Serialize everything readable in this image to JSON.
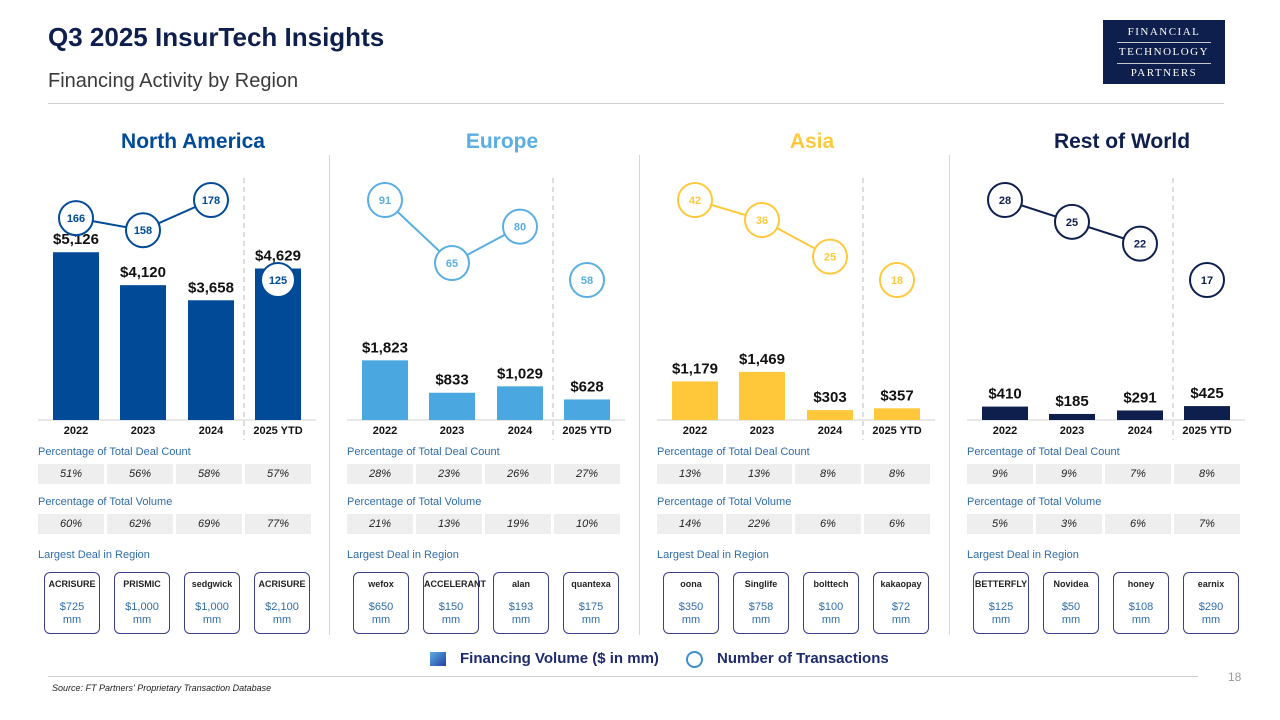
{
  "header": {
    "title": "Q3 2025 InsurTech Insights",
    "subtitle": "Financing Activity by Region",
    "logo_lines": [
      "FINANCIAL",
      "TECHNOLOGY",
      "PARTNERS"
    ]
  },
  "labels": {
    "deal_count": "Percentage of Total Deal Count",
    "volume": "Percentage of Total Volume",
    "largest": "Largest Deal in Region"
  },
  "legend": {
    "volume": "Financing Volume ($ in mm)",
    "transactions": "Number of Transactions"
  },
  "footer": {
    "source": "Source: FT Partners' Proprietary Transaction Database",
    "page": "18"
  },
  "chart_data": [
    {
      "type": "bar",
      "title": "North America",
      "color": "#004a97",
      "bar_color": "#004a97",
      "categories": [
        "2022",
        "2023",
        "2024",
        "2025 YTD"
      ],
      "series": [
        {
          "name": "Financing Volume ($ in mm)",
          "values": [
            5126,
            4120,
            3658,
            4629
          ],
          "labels": [
            "$5,126",
            "$4,120",
            "$3,658",
            "$4,629"
          ]
        },
        {
          "name": "Number of Transactions",
          "values": [
            166,
            158,
            178,
            125
          ]
        }
      ],
      "ylim": [
        0,
        5500
      ],
      "deal_count_pct": [
        "51%",
        "56%",
        "58%",
        "57%"
      ],
      "volume_pct": [
        "60%",
        "62%",
        "69%",
        "77%"
      ],
      "largest_deals": [
        {
          "company": "ACRISURE",
          "amount": "$725",
          "unit": "mm"
        },
        {
          "company": "PRISMIC",
          "amount": "$1,000",
          "unit": "mm"
        },
        {
          "company": "sedgwick",
          "amount": "$1,000",
          "unit": "mm"
        },
        {
          "company": "ACRISURE",
          "amount": "$2,100",
          "unit": "mm"
        }
      ]
    },
    {
      "type": "bar",
      "title": "Europe",
      "color": "#5aaee2",
      "bar_color": "#4aa7e0",
      "categories": [
        "2022",
        "2023",
        "2024",
        "2025 YTD"
      ],
      "series": [
        {
          "name": "Financing Volume ($ in mm)",
          "values": [
            1823,
            833,
            1029,
            628
          ],
          "labels": [
            "$1,823",
            "$833",
            "$1,029",
            "$628"
          ]
        },
        {
          "name": "Number of Transactions",
          "values": [
            91,
            65,
            80,
            58
          ]
        }
      ],
      "ylim": [
        0,
        5500
      ],
      "deal_count_pct": [
        "28%",
        "23%",
        "26%",
        "27%"
      ],
      "volume_pct": [
        "21%",
        "13%",
        "19%",
        "10%"
      ],
      "largest_deals": [
        {
          "company": "wefox",
          "amount": "$650",
          "unit": "mm"
        },
        {
          "company": "ACCELERANT",
          "amount": "$150",
          "unit": "mm"
        },
        {
          "company": "alan",
          "amount": "$193",
          "unit": "mm"
        },
        {
          "company": "quantexa",
          "amount": "$175",
          "unit": "mm"
        }
      ]
    },
    {
      "type": "bar",
      "title": "Asia",
      "color": "#ffc93c",
      "bar_color": "#ffc83a",
      "categories": [
        "2022",
        "2023",
        "2024",
        "2025 YTD"
      ],
      "series": [
        {
          "name": "Financing Volume ($ in mm)",
          "values": [
            1179,
            1469,
            303,
            357
          ],
          "labels": [
            "$1,179",
            "$1,469",
            "$303",
            "$357"
          ]
        },
        {
          "name": "Number of Transactions",
          "values": [
            42,
            36,
            25,
            18
          ]
        }
      ],
      "ylim": [
        0,
        5500
      ],
      "deal_count_pct": [
        "13%",
        "13%",
        "8%",
        "8%"
      ],
      "volume_pct": [
        "14%",
        "22%",
        "6%",
        "6%"
      ],
      "largest_deals": [
        {
          "company": "oona",
          "amount": "$350",
          "unit": "mm"
        },
        {
          "company": "Singlife",
          "amount": "$758",
          "unit": "mm"
        },
        {
          "company": "bolttech",
          "amount": "$100",
          "unit": "mm"
        },
        {
          "company": "kakaopay",
          "amount": "$72",
          "unit": "mm"
        }
      ]
    },
    {
      "type": "bar",
      "title": "Rest of World",
      "color": "#0e1f4d",
      "bar_color": "#0e1f4d",
      "categories": [
        "2022",
        "2023",
        "2024",
        "2025 YTD"
      ],
      "series": [
        {
          "name": "Financing Volume ($ in mm)",
          "values": [
            410,
            185,
            291,
            425
          ],
          "labels": [
            "$410",
            "$185",
            "$291",
            "$425"
          ]
        },
        {
          "name": "Number of Transactions",
          "values": [
            28,
            25,
            22,
            17
          ]
        }
      ],
      "ylim": [
        0,
        5500
      ],
      "deal_count_pct": [
        "9%",
        "9%",
        "7%",
        "8%"
      ],
      "volume_pct": [
        "5%",
        "3%",
        "6%",
        "7%"
      ],
      "largest_deals": [
        {
          "company": "BETTERFLY",
          "amount": "$125",
          "unit": "mm"
        },
        {
          "company": "Novidea",
          "amount": "$50",
          "unit": "mm"
        },
        {
          "company": "honey",
          "amount": "$108",
          "unit": "mm"
        },
        {
          "company": "earnix",
          "amount": "$290",
          "unit": "mm"
        }
      ]
    }
  ]
}
